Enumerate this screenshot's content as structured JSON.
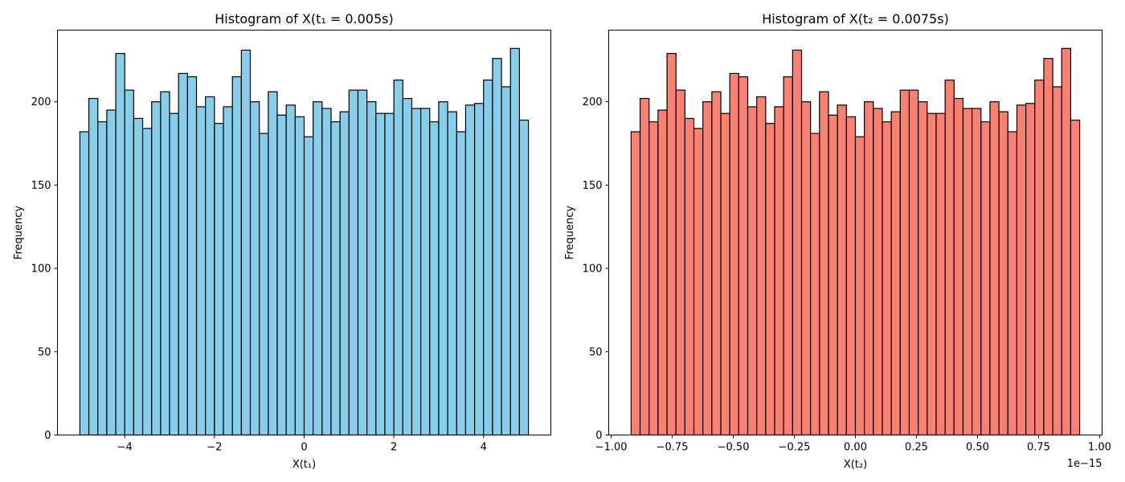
{
  "chart_data": [
    {
      "type": "bar",
      "title": "Histogram of X(t₁ = 0.005s)",
      "xlabel": "X(t₁)",
      "ylabel": "Frequency",
      "bar_color": "#87CEEB",
      "edge_color": "#000000",
      "xlim": [
        -5.5,
        5.5
      ],
      "ylim": [
        0,
        243
      ],
      "bin_range": [
        -5.0,
        5.0
      ],
      "xticks": [
        -4,
        -2,
        0,
        2,
        4
      ],
      "xtick_labels": [
        "−4",
        "−2",
        "0",
        "2",
        "4"
      ],
      "yticks": [
        0,
        50,
        100,
        150,
        200
      ],
      "ytick_labels": [
        "0",
        "50",
        "100",
        "150",
        "200"
      ],
      "offset_text": "",
      "values": [
        182,
        202,
        188,
        195,
        229,
        207,
        190,
        184,
        200,
        206,
        193,
        217,
        215,
        197,
        203,
        187,
        197,
        215,
        231,
        200,
        181,
        206,
        192,
        198,
        191,
        179,
        200,
        196,
        188,
        194,
        207,
        207,
        200,
        193,
        193,
        213,
        202,
        196,
        196,
        188,
        200,
        194,
        182,
        198,
        199,
        213,
        226,
        209,
        232,
        189
      ],
      "grid": false,
      "legend": "none"
    },
    {
      "type": "bar",
      "title": "Histogram of X(t₂ = 0.0075s)",
      "xlabel": "X(t₂)",
      "ylabel": "Frequency",
      "bar_color": "#FA8072",
      "edge_color": "#000000",
      "xlim": [
        -1.0102,
        1.0102
      ],
      "ylim": [
        0,
        243
      ],
      "bin_range": [
        -0.9184,
        0.9184
      ],
      "xticks": [
        -1.0,
        -0.75,
        -0.5,
        -0.25,
        0.0,
        0.25,
        0.5,
        0.75,
        1.0
      ],
      "xtick_labels": [
        "−1.00",
        "−0.75",
        "−0.50",
        "−0.25",
        "0.00",
        "0.25",
        "0.50",
        "0.75",
        "1.00"
      ],
      "yticks": [
        0,
        50,
        100,
        150,
        200
      ],
      "ytick_labels": [
        "0",
        "50",
        "100",
        "150",
        "200"
      ],
      "offset_text": "1e−15",
      "values": [
        182,
        202,
        188,
        195,
        229,
        207,
        190,
        184,
        200,
        206,
        193,
        217,
        215,
        197,
        203,
        187,
        197,
        215,
        231,
        200,
        181,
        206,
        192,
        198,
        191,
        179,
        200,
        196,
        188,
        194,
        207,
        207,
        200,
        193,
        193,
        213,
        202,
        196,
        196,
        188,
        200,
        194,
        182,
        198,
        199,
        213,
        226,
        209,
        232,
        189
      ],
      "grid": false,
      "legend": "none"
    }
  ]
}
